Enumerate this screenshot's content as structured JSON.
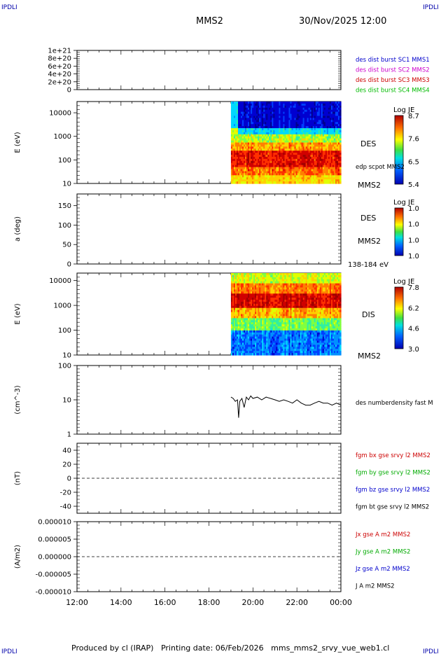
{
  "header": {
    "corner_left": "IPDLI",
    "corner_right": "IPDLI",
    "spacecraft": "MMS2",
    "datetime": "30/Nov/2025 12:00"
  },
  "footer": {
    "text": "Produced by cl (IRAP)   Printing date: 06/Feb/2026   mms_mms2_srvy_vue_web1.cl",
    "corner_left": "IPDLI",
    "corner_right": "IPDLI"
  },
  "colors": {
    "mms1": "#0000cc",
    "mms2": "#cc00cc",
    "mms3": "#cc0000",
    "mms4": "#00bb00",
    "bx": "#cc0000",
    "by": "#00aa00",
    "bz": "#0000cc",
    "bt": "#000000"
  },
  "chart_data": [
    {
      "type": "line",
      "id": "panel1",
      "yticks": [
        "1e+21",
        "8e+20",
        "6e+20",
        "4e+20",
        "2e+20",
        "0"
      ],
      "ylim": [
        0,
        1e+21
      ],
      "series": [
        {
          "name": "des dist burst SC1 MMS1",
          "values": []
        },
        {
          "name": "des dist burst SC2 MMS2",
          "values": []
        },
        {
          "name": "des dist burst SC3 MMS3",
          "values": []
        },
        {
          "name": "des dist burst SC4 MMS4",
          "values": []
        }
      ]
    },
    {
      "type": "heatmap",
      "id": "panel2",
      "ylabel": "E (eV)",
      "yscale": "log",
      "yticks": [
        "10000",
        "1000",
        "100",
        "10"
      ],
      "ylim": [
        10,
        30000
      ],
      "data_start_hour": 19.0,
      "labels": [
        "DES",
        "edp scpot MMS2",
        "MMS2"
      ],
      "colorbar": {
        "title": "Log JE",
        "ticks": [
          "8.7",
          "7.6",
          "6.5",
          "5.4"
        ]
      }
    },
    {
      "type": "heatmap",
      "id": "panel3",
      "ylabel": "a (deg)",
      "yticks": [
        "150",
        "100",
        "50",
        "0"
      ],
      "ylim": [
        0,
        180
      ],
      "labels": [
        "DES",
        "MMS2",
        "138-184 eV"
      ],
      "colorbar": {
        "title": "Log JE",
        "ticks": [
          "1.0",
          "1.0",
          "1.0",
          "1.0"
        ]
      }
    },
    {
      "type": "heatmap",
      "id": "panel4",
      "ylabel": "E (eV)",
      "yscale": "log",
      "yticks": [
        "10000",
        "1000",
        "100",
        "10"
      ],
      "ylim": [
        10,
        20000
      ],
      "data_start_hour": 19.0,
      "labels": [
        "DIS",
        "MMS2"
      ],
      "colorbar": {
        "title": "Log JE",
        "ticks": [
          "7.8",
          "6.2",
          "4.6",
          "3.0"
        ]
      }
    },
    {
      "type": "line",
      "id": "panel5",
      "ylabel": "(cm^-3)",
      "yscale": "log",
      "yticks": [
        "100",
        "10",
        "1"
      ],
      "ylim": [
        1,
        100
      ],
      "series": [
        {
          "name": "des numberdensity fast M",
          "x": [
            19.0,
            19.1,
            19.2,
            19.3,
            19.35,
            19.4,
            19.5,
            19.6,
            19.7,
            19.8,
            19.9,
            20.0,
            20.2,
            20.4,
            20.6,
            20.8,
            21.0,
            21.2,
            21.4,
            21.6,
            21.8,
            22.0,
            22.2,
            22.4,
            22.6,
            22.8,
            23.0,
            23.2,
            23.4,
            23.6,
            23.8,
            24.0
          ],
          "values": [
            12,
            11,
            9,
            10,
            3,
            9,
            11,
            6,
            12,
            10,
            13,
            11,
            12,
            10,
            12,
            11,
            10,
            9,
            10,
            9,
            8,
            10,
            8,
            7,
            7,
            8,
            9,
            8,
            8,
            7,
            8,
            7
          ]
        }
      ]
    },
    {
      "type": "line",
      "id": "panel6",
      "ylabel": "(nT)",
      "yticks": [
        "40",
        "20",
        "0",
        "-20",
        "-40"
      ],
      "ylim": [
        -50,
        50
      ],
      "series": [
        {
          "name": "fgm bx gse srvy l2 MMS2",
          "values": []
        },
        {
          "name": "fgm by gse srvy l2 MMS2",
          "values": []
        },
        {
          "name": "fgm bz gse srvy l2 MMS2",
          "values": []
        },
        {
          "name": "fgm bt gse srvy l2 MMS2",
          "values": []
        }
      ]
    },
    {
      "type": "line",
      "id": "panel7",
      "ylabel": "(A/m2)",
      "yticks": [
        "0.000010",
        "0.000005",
        "0.000000",
        "-0.000005",
        "-0.000010"
      ],
      "ylim": [
        -1e-05,
        1e-05
      ],
      "series": [
        {
          "name": "Jx gse A m2 MMS2",
          "values": []
        },
        {
          "name": "Jy gse A m2 MMS2",
          "values": []
        },
        {
          "name": "Jz gse A m2 MMS2",
          "values": []
        },
        {
          "name": "J A m2 MMS2",
          "values": []
        }
      ]
    }
  ],
  "xaxis": {
    "range_hours": [
      12,
      24
    ],
    "ticks": [
      "12:00",
      "14:00",
      "16:00",
      "18:00",
      "20:00",
      "22:00",
      "00:00"
    ]
  }
}
